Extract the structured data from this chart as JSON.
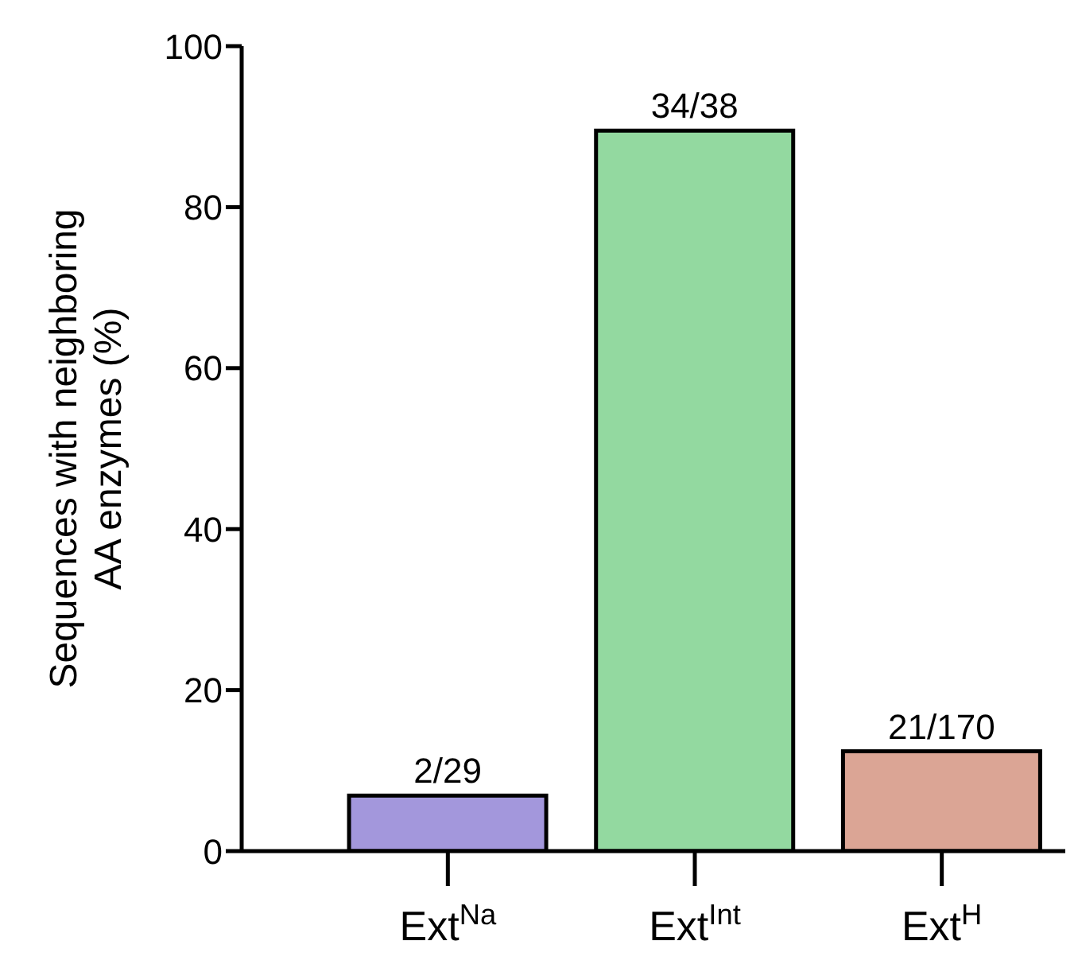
{
  "chart_data": {
    "type": "bar",
    "ylabel": "Sequences with neighboring AA enzymes (%)",
    "categories": [
      "Ext$^{Na}$",
      "Ext$^{Int}$",
      "Ext$^{H}$"
    ],
    "values": [
      6.9,
      89.5,
      12.4
    ],
    "colors": [
      "#a397dc",
      "#93d9a0",
      "#dba595"
    ],
    "value_labels": [
      "2/29",
      "34/38",
      "21/170"
    ],
    "ylim": [
      0,
      100
    ],
    "yticks": [
      0,
      20,
      40,
      60,
      80,
      100
    ],
    "grid": false,
    "legend": false
  }
}
